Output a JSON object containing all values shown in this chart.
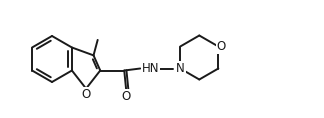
{
  "bg_color": "#ffffff",
  "line_color": "#1a1a1a",
  "line_width": 1.4,
  "font_size": 8.5,
  "figsize": [
    3.24,
    1.18
  ],
  "dpi": 100,
  "labels": {
    "O_furan": "O",
    "O_carbonyl": "O",
    "O_morph": "O",
    "HN": "HN",
    "N": "N"
  }
}
